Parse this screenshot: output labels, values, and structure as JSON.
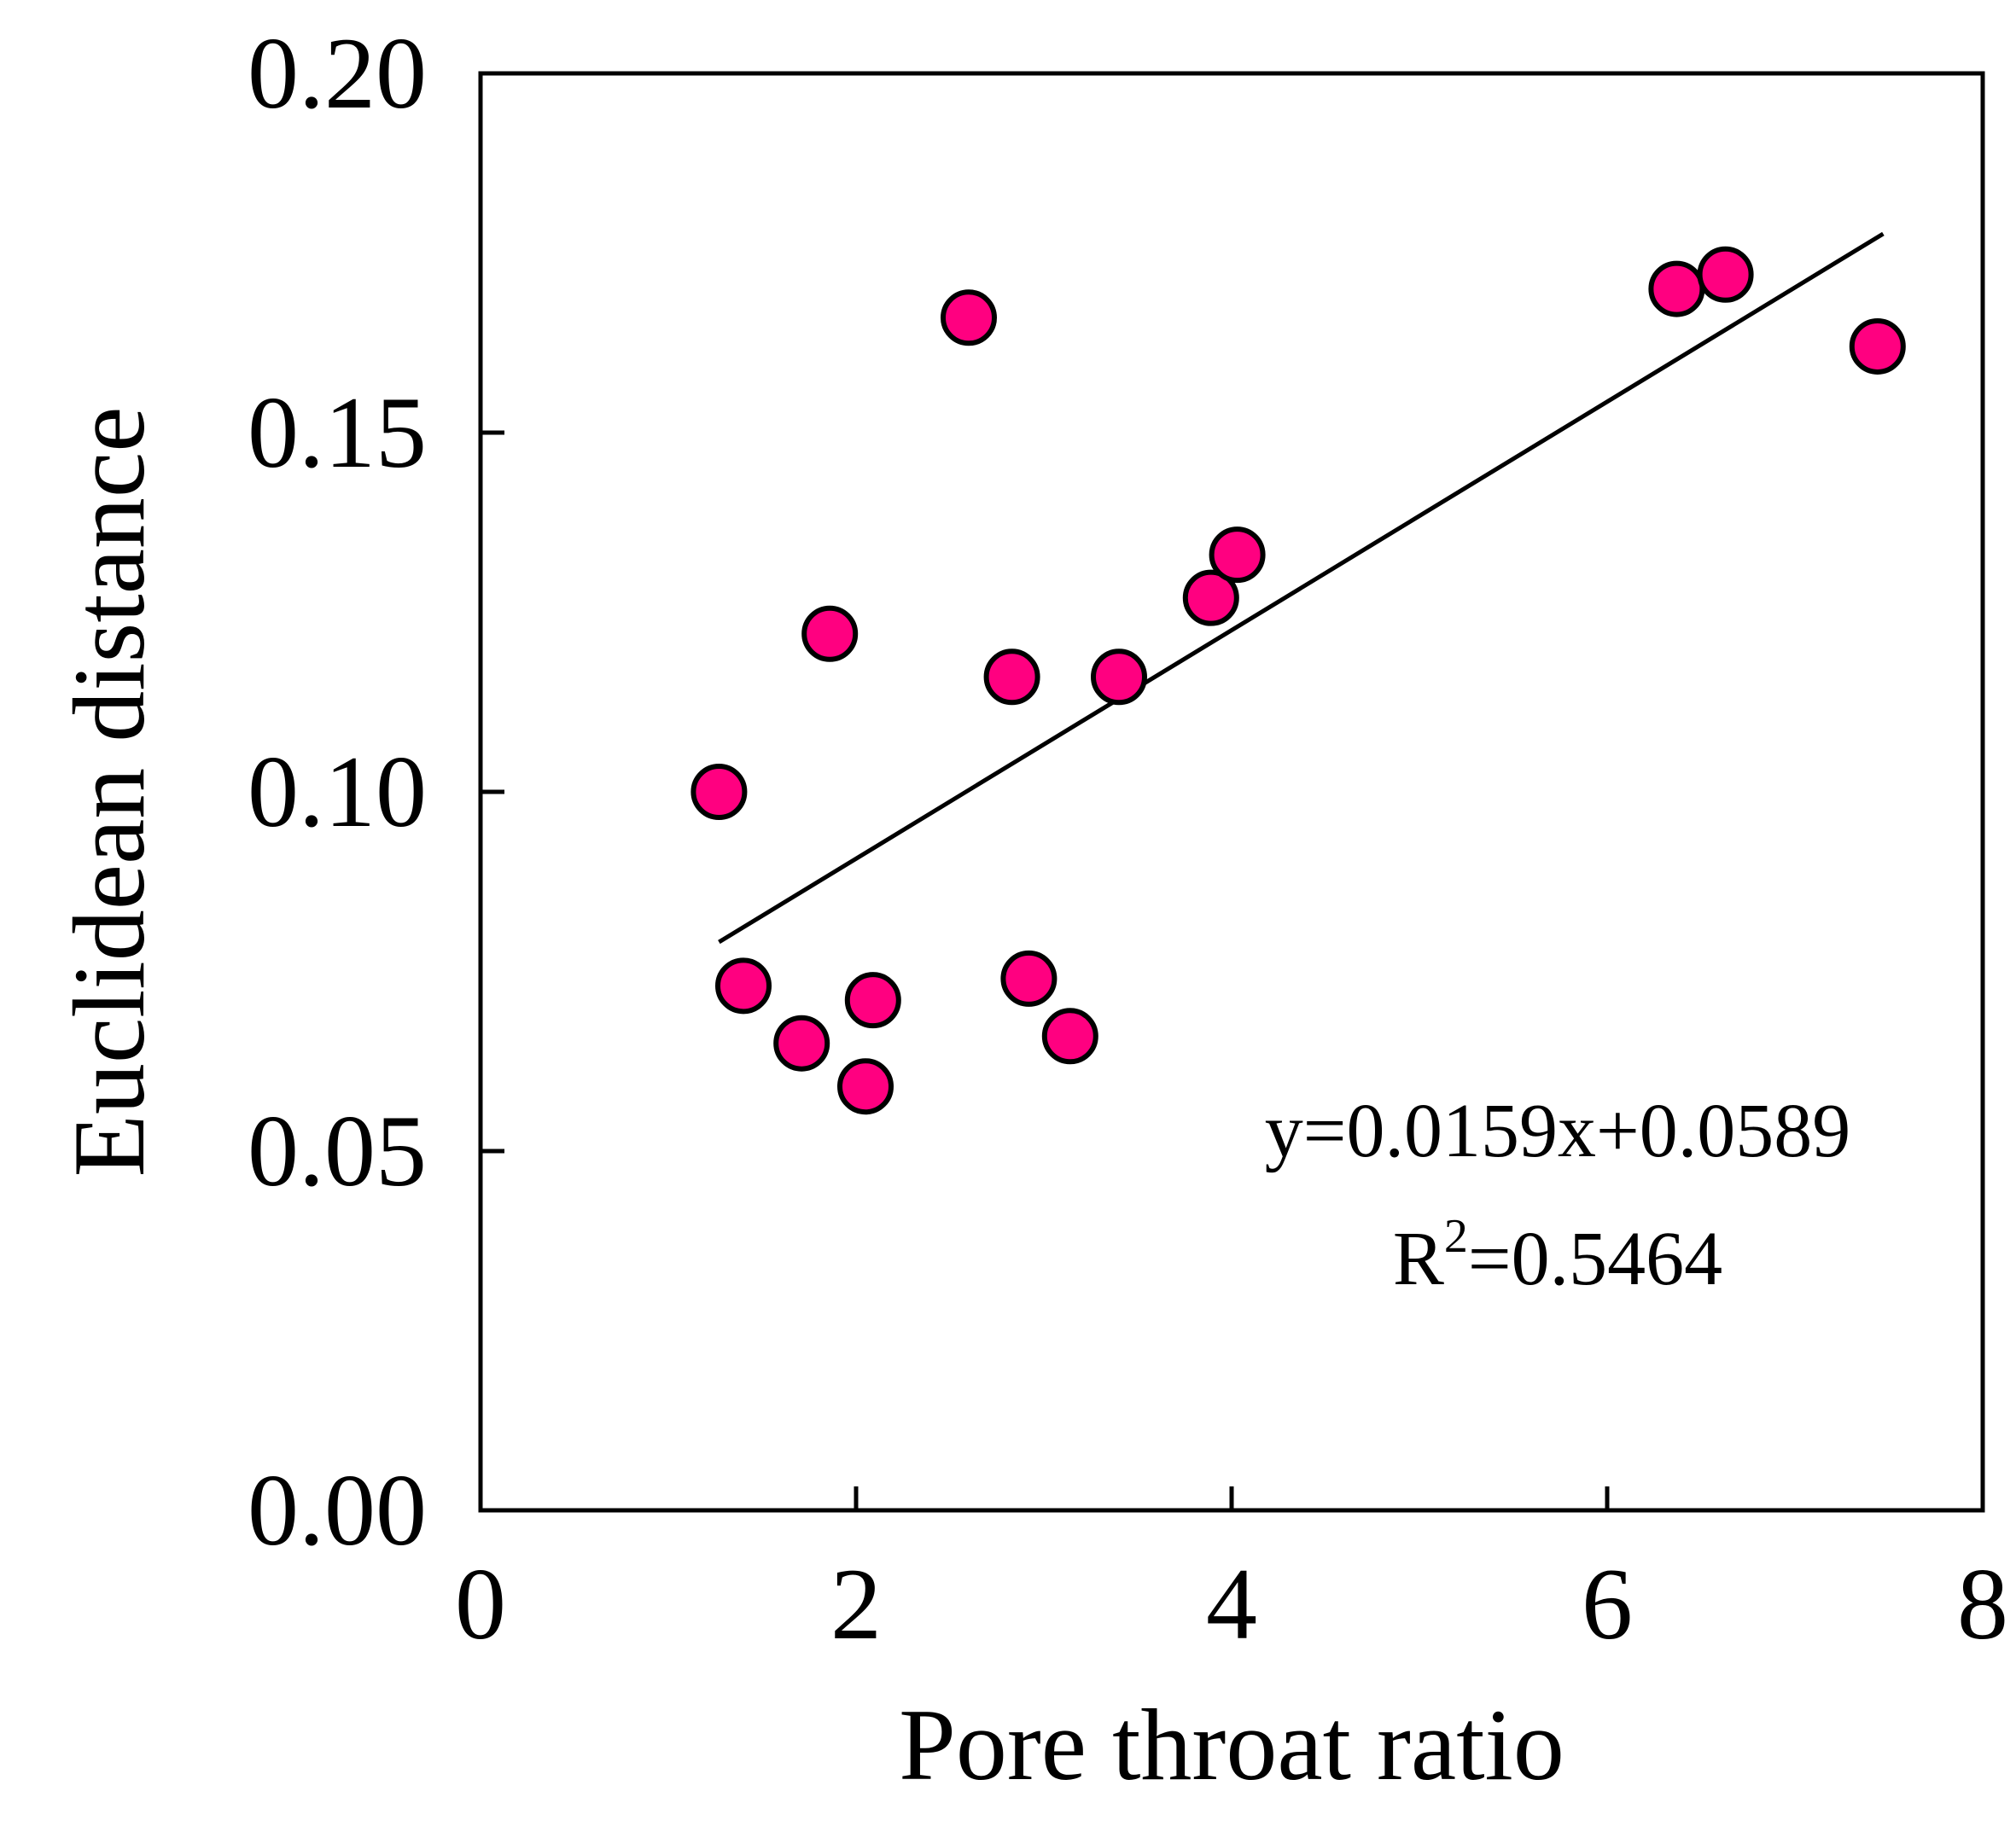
{
  "chart_data": {
    "type": "scatter",
    "title": "",
    "xlabel": "Pore throat ratio",
    "ylabel": "Euclidean distance",
    "xlim": [
      0,
      8
    ],
    "ylim": [
      0,
      0.2
    ],
    "xticks": [
      0,
      2,
      4,
      6,
      8
    ],
    "xtick_labels": [
      "0",
      "2",
      "4",
      "6",
      "8"
    ],
    "yticks": [
      0,
      0.05,
      0.1,
      0.15,
      0.2
    ],
    "ytick_labels": [
      "0.00",
      "0.05",
      "0.10",
      "0.15",
      "0.20"
    ],
    "grid": false,
    "series": [
      {
        "name": "samples",
        "color": "#ff0080",
        "x": [
          1.27,
          1.4,
          1.71,
          1.86,
          2.05,
          2.09,
          2.6,
          2.83,
          2.92,
          3.14,
          3.4,
          3.89,
          4.03,
          6.37,
          6.63,
          7.44
        ],
        "y": [
          0.1,
          0.073,
          0.065,
          0.122,
          0.059,
          0.071,
          0.166,
          0.116,
          0.074,
          0.066,
          0.116,
          0.127,
          0.133,
          0.17,
          0.172,
          0.162
        ]
      }
    ],
    "fit": {
      "slope": 0.0159,
      "intercept": 0.0589,
      "x_range": [
        1.27,
        7.47
      ],
      "color": "#000000"
    },
    "annotations": {
      "equation": "y=0.0159x+0.0589",
      "r2_prefix": "R",
      "r2_sup": "2",
      "r2_value": "=0.5464"
    }
  }
}
